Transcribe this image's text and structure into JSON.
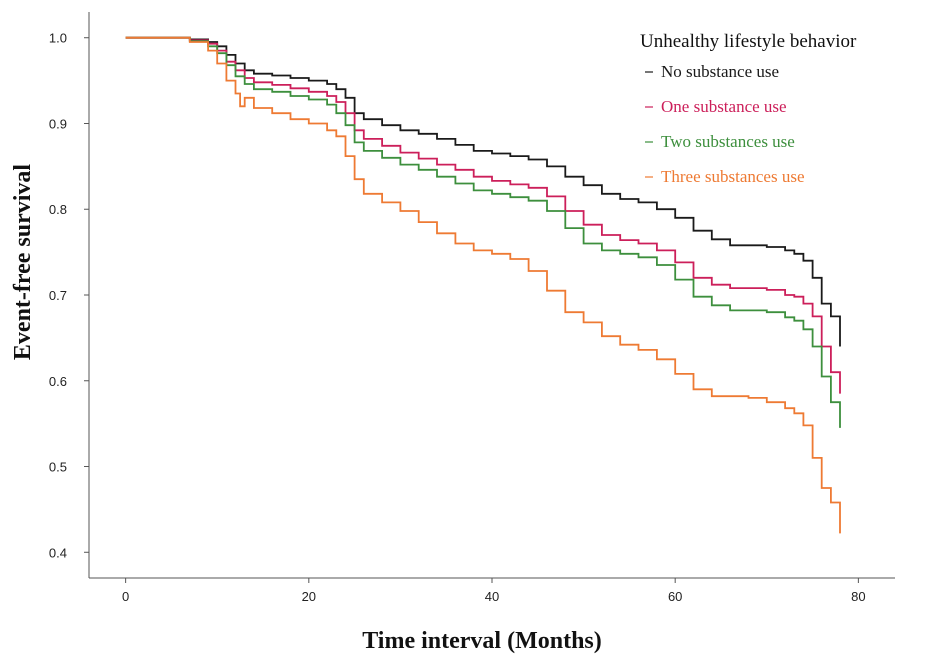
{
  "chart_data": {
    "type": "line",
    "title": "",
    "xlabel": "Time interval (Months)",
    "ylabel": "Event-free survival",
    "xlim": [
      -4,
      84
    ],
    "ylim": [
      0.37,
      1.03
    ],
    "x_ticks": [
      0,
      20,
      40,
      60,
      80
    ],
    "x_tick_labels": [
      "0",
      "20",
      "40",
      "60",
      "80"
    ],
    "y_ticks": [
      0.4,
      0.5,
      0.6,
      0.7,
      0.8,
      0.9,
      1.0
    ],
    "y_tick_labels": [
      "0.4",
      "0.5",
      "0.6",
      "0.7",
      "0.8",
      "0.9",
      "1.0"
    ],
    "grid": false,
    "legend": {
      "title": "Unhealthy lifestyle behavior",
      "position": "top-right"
    },
    "series": [
      {
        "name": "No substance use",
        "color": "#1a1a1a",
        "x": [
          0,
          7,
          9,
          10,
          11,
          12,
          13,
          14,
          16,
          18,
          20,
          22,
          23,
          24,
          25,
          26,
          28,
          30,
          32,
          34,
          36,
          38,
          40,
          42,
          44,
          46,
          48,
          50,
          52,
          54,
          56,
          58,
          60,
          62,
          64,
          66,
          68,
          70,
          72,
          73,
          74,
          75,
          76,
          77,
          78
        ],
        "y": [
          1.0,
          0.998,
          0.995,
          0.99,
          0.98,
          0.97,
          0.962,
          0.958,
          0.956,
          0.953,
          0.95,
          0.946,
          0.94,
          0.93,
          0.912,
          0.905,
          0.898,
          0.892,
          0.888,
          0.882,
          0.875,
          0.868,
          0.865,
          0.862,
          0.858,
          0.85,
          0.838,
          0.828,
          0.818,
          0.812,
          0.808,
          0.8,
          0.79,
          0.775,
          0.765,
          0.758,
          0.758,
          0.756,
          0.752,
          0.748,
          0.74,
          0.72,
          0.69,
          0.675,
          0.64
        ]
      },
      {
        "name": "One substance use",
        "color": "#cc1f5a",
        "x": [
          0,
          7,
          9,
          10,
          11,
          12,
          13,
          14,
          16,
          18,
          20,
          22,
          23,
          24,
          25,
          26,
          28,
          30,
          32,
          34,
          36,
          38,
          40,
          42,
          44,
          46,
          48,
          50,
          52,
          54,
          56,
          58,
          60,
          62,
          64,
          66,
          68,
          70,
          72,
          73,
          74,
          75,
          76,
          77,
          78
        ],
        "y": [
          1.0,
          0.997,
          0.993,
          0.985,
          0.972,
          0.962,
          0.953,
          0.948,
          0.945,
          0.941,
          0.937,
          0.932,
          0.925,
          0.912,
          0.892,
          0.882,
          0.874,
          0.866,
          0.859,
          0.852,
          0.846,
          0.838,
          0.833,
          0.829,
          0.825,
          0.815,
          0.798,
          0.782,
          0.77,
          0.764,
          0.76,
          0.752,
          0.738,
          0.72,
          0.712,
          0.708,
          0.708,
          0.706,
          0.7,
          0.698,
          0.69,
          0.675,
          0.64,
          0.61,
          0.585
        ]
      },
      {
        "name": "Two substances use",
        "color": "#3d8f3d",
        "x": [
          0,
          7,
          9,
          10,
          11,
          12,
          13,
          14,
          16,
          18,
          20,
          22,
          23,
          24,
          25,
          26,
          28,
          30,
          32,
          34,
          36,
          38,
          40,
          42,
          44,
          46,
          48,
          50,
          52,
          54,
          56,
          58,
          60,
          62,
          64,
          66,
          68,
          70,
          72,
          73,
          74,
          75,
          76,
          77,
          78
        ],
        "y": [
          1.0,
          0.996,
          0.99,
          0.982,
          0.968,
          0.955,
          0.946,
          0.94,
          0.937,
          0.932,
          0.928,
          0.922,
          0.912,
          0.898,
          0.878,
          0.868,
          0.86,
          0.852,
          0.846,
          0.838,
          0.83,
          0.822,
          0.818,
          0.814,
          0.81,
          0.798,
          0.778,
          0.76,
          0.752,
          0.748,
          0.744,
          0.735,
          0.718,
          0.698,
          0.688,
          0.682,
          0.682,
          0.68,
          0.674,
          0.67,
          0.66,
          0.64,
          0.605,
          0.575,
          0.545
        ]
      },
      {
        "name": "Three substances use",
        "color": "#ee7a33",
        "x": [
          0,
          7,
          9,
          10,
          11,
          12,
          12.5,
          13,
          14,
          16,
          18,
          20,
          22,
          23,
          24,
          25,
          26,
          28,
          30,
          32,
          34,
          36,
          38,
          40,
          42,
          44,
          46,
          48,
          50,
          52,
          54,
          56,
          58,
          60,
          62,
          64,
          66,
          68,
          70,
          72,
          73,
          74,
          75,
          76,
          77,
          78
        ],
        "y": [
          1.0,
          0.995,
          0.985,
          0.97,
          0.95,
          0.935,
          0.92,
          0.93,
          0.918,
          0.912,
          0.905,
          0.9,
          0.892,
          0.885,
          0.862,
          0.835,
          0.818,
          0.808,
          0.798,
          0.785,
          0.772,
          0.76,
          0.752,
          0.748,
          0.742,
          0.728,
          0.705,
          0.68,
          0.668,
          0.652,
          0.642,
          0.636,
          0.625,
          0.608,
          0.59,
          0.582,
          0.582,
          0.58,
          0.575,
          0.568,
          0.562,
          0.548,
          0.51,
          0.475,
          0.458,
          0.422
        ]
      }
    ]
  }
}
